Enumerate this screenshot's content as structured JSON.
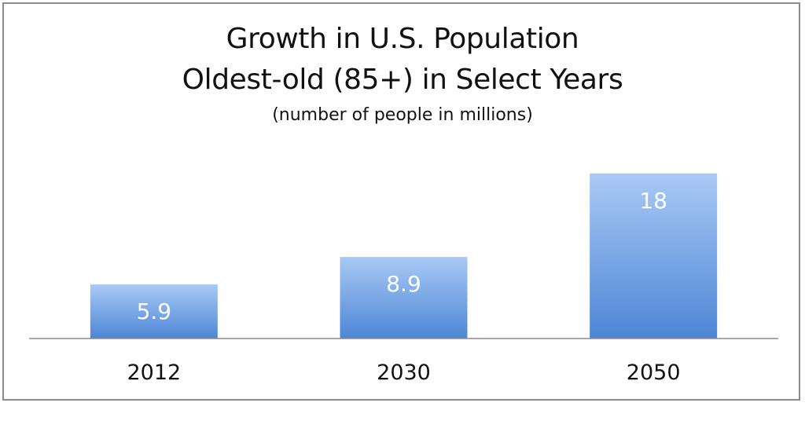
{
  "chart_data": {
    "type": "bar",
    "title": [
      "Growth in U.S. Population",
      "Oldest-old (85+) in Select Years"
    ],
    "subtitle": "(number of people in millions)",
    "categories": [
      "2012",
      "2030",
      "2050"
    ],
    "values": [
      5.9,
      8.9,
      18
    ],
    "value_labels": [
      "5.9",
      "8.9",
      "18"
    ],
    "xlabel": "",
    "ylabel": "",
    "ylim": [
      0,
      18.5
    ],
    "grid": false,
    "legend": "none",
    "colors": {
      "bar_top": "#a9c9f5",
      "bar_bottom": "#4d86d6",
      "axis": "#8c8c8c",
      "label": "#ffffff",
      "tick": "#111111"
    }
  }
}
